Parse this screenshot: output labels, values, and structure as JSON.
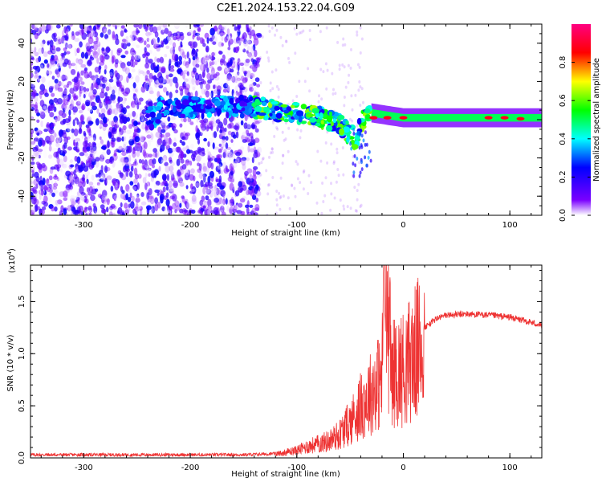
{
  "title": "C2E1.2024.153.22.04.G09",
  "chart_data": [
    {
      "type": "heatmap",
      "xlabel": "Height of straight line (km)",
      "ylabel": "Frequency (Hz)",
      "xlim": [
        -350,
        130
      ],
      "ylim": [
        -50,
        50
      ],
      "x_ticks": [
        -300,
        -200,
        -100,
        0,
        100
      ],
      "x_tick_labels": [
        "-300",
        "-200",
        "-100",
        "0",
        "100"
      ],
      "y_ticks": [
        -40,
        -20,
        0,
        20,
        40
      ],
      "y_tick_labels": [
        "-40",
        "-20",
        "0",
        "20",
        "40"
      ],
      "colorbar": {
        "label": "Normalized spectral amplitude",
        "range": [
          0,
          1
        ],
        "ticks": [
          0.0,
          0.2,
          0.4,
          0.6,
          0.8
        ],
        "tick_labels": [
          "0.0",
          "0.2",
          "0.4",
          "0.6",
          "0.8"
        ],
        "colors": [
          "#ffffff",
          "#7a00ff",
          "#0000ff",
          "#00ffff",
          "#00ff00",
          "#ffff00",
          "#ff0000",
          "#ff0080"
        ]
      },
      "ridge": [
        {
          "x": -230,
          "y": 6
        },
        {
          "x": -180,
          "y": 7
        },
        {
          "x": -140,
          "y": 7
        },
        {
          "x": -110,
          "y": 4
        },
        {
          "x": -80,
          "y": 2
        },
        {
          "x": -60,
          "y": -3
        },
        {
          "x": -45,
          "y": -10
        },
        {
          "x": -35,
          "y": 4
        },
        {
          "x": 0,
          "y": 1
        },
        {
          "x": 50,
          "y": 1
        },
        {
          "x": 100,
          "y": 1
        },
        {
          "x": 130,
          "y": 1
        }
      ]
    },
    {
      "type": "line",
      "xlabel": "Height of straight line (km)",
      "ylabel": "SNR (10 * v/v)",
      "y_multiplier": "(x10",
      "y_multiplier_exp": "4",
      "y_multiplier_close": ")",
      "xlim": [
        -350,
        130
      ],
      "ylim": [
        0,
        1.85
      ],
      "x_ticks": [
        -300,
        -200,
        -100,
        0,
        100
      ],
      "x_tick_labels": [
        "-300",
        "-200",
        "-100",
        "0",
        "100"
      ],
      "y_ticks": [
        0.0,
        0.5,
        1.0,
        1.5
      ],
      "y_tick_labels": [
        "0.0",
        "0.5",
        "1.0",
        "1.5"
      ],
      "line_color": "#ee3333",
      "x": [
        -350,
        -300,
        -250,
        -200,
        -150,
        -120,
        -100,
        -90,
        -80,
        -70,
        -60,
        -50,
        -40,
        -30,
        -20,
        -18,
        -10,
        0,
        10,
        20,
        30,
        40,
        60,
        80,
        100,
        120,
        130
      ],
      "y": [
        0.03,
        0.03,
        0.03,
        0.03,
        0.03,
        0.04,
        0.08,
        0.12,
        0.15,
        0.18,
        0.25,
        0.38,
        0.55,
        0.7,
        0.85,
        1.85,
        0.9,
        0.95,
        1.1,
        1.25,
        1.33,
        1.37,
        1.38,
        1.37,
        1.35,
        1.3,
        1.27
      ]
    }
  ]
}
